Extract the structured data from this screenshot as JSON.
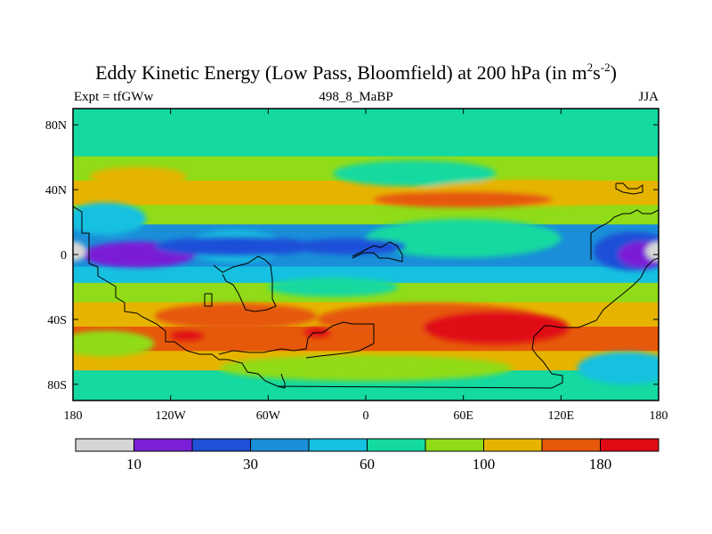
{
  "chart_data": {
    "type": "heatmap",
    "title_main": "Eddy Kinetic Energy (Low Pass, Bloomfield) at 200 hPa (in m",
    "title_sup1": "2",
    "title_mid": "s",
    "title_sup2": "-2",
    "title_end": ")",
    "subtitle_left": "Expt = tfGWw",
    "subtitle_center": "498_8_MaBP",
    "subtitle_right": "JJA",
    "x_ticks": [
      {
        "lon": -180,
        "label": "180"
      },
      {
        "lon": -120,
        "label": "120W"
      },
      {
        "lon": -60,
        "label": "60W"
      },
      {
        "lon": 0,
        "label": "0"
      },
      {
        "lon": 60,
        "label": "60E"
      },
      {
        "lon": 120,
        "label": "120E"
      },
      {
        "lon": 180,
        "label": "180"
      }
    ],
    "y_ticks": [
      {
        "lat": 80,
        "label": "80N"
      },
      {
        "lat": 40,
        "label": "40N"
      },
      {
        "lat": 0,
        "label": "0"
      },
      {
        "lat": -40,
        "label": "40S"
      },
      {
        "lat": -80,
        "label": "80S"
      }
    ],
    "xlim": [
      -180,
      180
    ],
    "ylim": [
      -90,
      90
    ],
    "colorbar": {
      "colors": [
        "#d6d6d6",
        "#7a1fd6",
        "#1e50d8",
        "#1a8ed8",
        "#16c0e0",
        "#14d9a0",
        "#90dc18",
        "#e6b400",
        "#e6580a",
        "#e00a14"
      ],
      "labels": [
        {
          "after_box": 1,
          "text": "10"
        },
        {
          "after_box": 3,
          "text": "30"
        },
        {
          "after_box": 5,
          "text": "60"
        },
        {
          "after_box": 7,
          "text": "100"
        },
        {
          "after_box": 9,
          "text": "180"
        }
      ]
    },
    "bands": [
      {
        "lat_min": 75,
        "lat_max": 90,
        "level": 5
      },
      {
        "lat_min": 60,
        "lat_max": 75,
        "level": 5
      },
      {
        "lat_min": 45,
        "lat_max": 60,
        "level": 6
      },
      {
        "lat_min": 30,
        "lat_max": 45,
        "level": 7
      },
      {
        "lat_min": 18,
        "lat_max": 30,
        "level": 6
      },
      {
        "lat_min": 8,
        "lat_max": 18,
        "level": 3
      },
      {
        "lat_min": -8,
        "lat_max": 8,
        "level": 3
      },
      {
        "lat_min": -18,
        "lat_max": -8,
        "level": 4
      },
      {
        "lat_min": -30,
        "lat_max": -18,
        "level": 6
      },
      {
        "lat_min": -45,
        "lat_max": -30,
        "level": 7
      },
      {
        "lat_min": -60,
        "lat_max": -45,
        "level": 8
      },
      {
        "lat_min": -72,
        "lat_max": -60,
        "level": 7
      },
      {
        "lat_min": -90,
        "lat_max": -72,
        "level": 5
      }
    ],
    "patches": [
      {
        "lon": 30,
        "lat": 50,
        "rx": 50,
        "ry": 8,
        "level": 5
      },
      {
        "lon": -140,
        "lat": 48,
        "rx": 30,
        "ry": 6,
        "level": 7
      },
      {
        "lon": 100,
        "lat": 38,
        "rx": 70,
        "ry": 8,
        "level": 7
      },
      {
        "lon": 60,
        "lat": 34,
        "rx": 55,
        "ry": 5,
        "level": 8
      },
      {
        "lon": -160,
        "lat": 22,
        "rx": 25,
        "ry": 10,
        "level": 4
      },
      {
        "lon": 60,
        "lat": 10,
        "rx": 60,
        "ry": 12,
        "level": 5
      },
      {
        "lon": -80,
        "lat": 5,
        "rx": 30,
        "ry": 10,
        "level": 4
      },
      {
        "lon": -140,
        "lat": 0,
        "rx": 35,
        "ry": 8,
        "level": 1
      },
      {
        "lon": -80,
        "lat": 5,
        "rx": 50,
        "ry": 6,
        "level": 2
      },
      {
        "lon": -10,
        "lat": 5,
        "rx": 35,
        "ry": 5,
        "level": 2
      },
      {
        "lon": 165,
        "lat": 2,
        "rx": 25,
        "ry": 12,
        "level": 2
      },
      {
        "lon": 170,
        "lat": 0,
        "rx": 15,
        "ry": 8,
        "level": 1
      },
      {
        "lon": -180,
        "lat": 2,
        "rx": 8,
        "ry": 6,
        "level": 0
      },
      {
        "lon": 180,
        "lat": 2,
        "rx": 8,
        "ry": 6,
        "level": 0
      },
      {
        "lon": -20,
        "lat": -20,
        "rx": 40,
        "ry": 6,
        "level": 5
      },
      {
        "lon": -80,
        "lat": -38,
        "rx": 50,
        "ry": 8,
        "level": 8
      },
      {
        "lon": 40,
        "lat": -40,
        "rx": 70,
        "ry": 10,
        "level": 8
      },
      {
        "lon": 80,
        "lat": -45,
        "rx": 45,
        "ry": 10,
        "level": 9
      },
      {
        "lon": -160,
        "lat": -55,
        "rx": 30,
        "ry": 8,
        "level": 6
      },
      {
        "lon": -110,
        "lat": -50,
        "rx": 10,
        "ry": 3,
        "level": 9
      },
      {
        "lon": -30,
        "lat": -48,
        "rx": 8,
        "ry": 3,
        "level": 9
      },
      {
        "lon": 0,
        "lat": -70,
        "rx": 90,
        "ry": 8,
        "level": 6
      },
      {
        "lon": 160,
        "lat": -70,
        "rx": 30,
        "ry": 10,
        "level": 4
      }
    ]
  }
}
